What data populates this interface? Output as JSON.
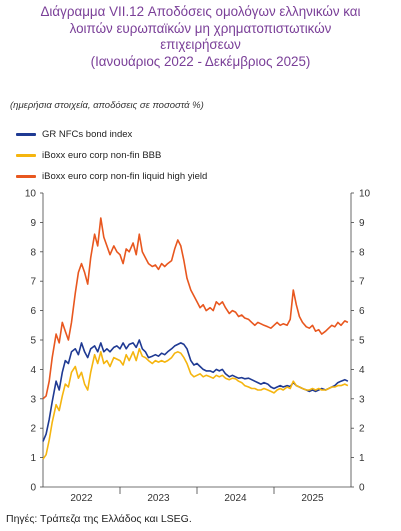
{
  "title": {
    "line1": "Διάγραμμα VII.12 Αποδόσεις ομολόγων ελληνικών και",
    "line2": "λοιπών ευρωπαϊκών μη χρηματοπιστωτικών",
    "line3": "επιχειρήσεων",
    "line4": "(Ιανουάριος 2022 - Δεκέμβριος 2025)"
  },
  "note": "(ημερήσια στοιχεία, αποδόσεις σε ποσοστά %)",
  "source": "Πηγές: Τράπεζα της Ελλάδος και LSEG.",
  "colors": {
    "title": "#7a3f98",
    "gr_nfcs": "#1f3a93",
    "bbb": "#f5b50f",
    "high_yield": "#e8571f"
  },
  "chart_data": {
    "type": "line",
    "title": "Διάγραμμα VII.12 Αποδόσεις ομολόγων ελληνικών και λοιπών ευρωπαϊκών μη χρηματοπιστωτικών επιχειρήσεων (Ιανουάριος 2022 - Δεκέμβριος 2025)",
    "xlabel": "",
    "ylabel": "",
    "x_ticks": [
      "2022",
      "2023",
      "2024",
      "2025"
    ],
    "y_ticks": [
      0,
      1,
      2,
      3,
      4,
      5,
      6,
      7,
      8,
      9,
      10
    ],
    "ylim": [
      0,
      10
    ],
    "xlim": [
      2022.0,
      2026.0
    ],
    "right_axis_mirror": true,
    "grid": false,
    "legend_position": "top-left",
    "series": [
      {
        "name": "GR NFCs bond index",
        "color": "#1f3a93",
        "points": [
          [
            2022.0,
            1.55
          ],
          [
            2022.04,
            1.8
          ],
          [
            2022.08,
            2.3
          ],
          [
            2022.12,
            2.9
          ],
          [
            2022.17,
            3.6
          ],
          [
            2022.21,
            3.3
          ],
          [
            2022.25,
            3.9
          ],
          [
            2022.29,
            4.3
          ],
          [
            2022.33,
            4.2
          ],
          [
            2022.37,
            4.6
          ],
          [
            2022.42,
            4.7
          ],
          [
            2022.46,
            4.5
          ],
          [
            2022.5,
            4.9
          ],
          [
            2022.54,
            4.6
          ],
          [
            2022.58,
            4.4
          ],
          [
            2022.62,
            4.7
          ],
          [
            2022.67,
            4.8
          ],
          [
            2022.71,
            4.6
          ],
          [
            2022.75,
            4.9
          ],
          [
            2022.79,
            4.6
          ],
          [
            2022.83,
            4.7
          ],
          [
            2022.87,
            4.6
          ],
          [
            2022.92,
            4.75
          ],
          [
            2022.96,
            4.8
          ],
          [
            2023.0,
            4.7
          ],
          [
            2023.04,
            4.9
          ],
          [
            2023.08,
            4.7
          ],
          [
            2023.12,
            4.85
          ],
          [
            2023.17,
            4.9
          ],
          [
            2023.21,
            4.75
          ],
          [
            2023.25,
            5.0
          ],
          [
            2023.29,
            4.7
          ],
          [
            2023.33,
            4.6
          ],
          [
            2023.37,
            4.4
          ],
          [
            2023.42,
            4.45
          ],
          [
            2023.46,
            4.5
          ],
          [
            2023.5,
            4.45
          ],
          [
            2023.54,
            4.55
          ],
          [
            2023.58,
            4.5
          ],
          [
            2023.62,
            4.6
          ],
          [
            2023.67,
            4.7
          ],
          [
            2023.71,
            4.8
          ],
          [
            2023.75,
            4.85
          ],
          [
            2023.79,
            4.9
          ],
          [
            2023.83,
            4.85
          ],
          [
            2023.87,
            4.7
          ],
          [
            2023.92,
            4.3
          ],
          [
            2023.96,
            4.15
          ],
          [
            2024.0,
            4.2
          ],
          [
            2024.04,
            4.1
          ],
          [
            2024.08,
            4.0
          ],
          [
            2024.12,
            3.95
          ],
          [
            2024.17,
            3.95
          ],
          [
            2024.21,
            3.9
          ],
          [
            2024.25,
            4.0
          ],
          [
            2024.29,
            3.95
          ],
          [
            2024.33,
            4.0
          ],
          [
            2024.37,
            3.85
          ],
          [
            2024.42,
            3.75
          ],
          [
            2024.46,
            3.8
          ],
          [
            2024.5,
            3.75
          ],
          [
            2024.54,
            3.7
          ],
          [
            2024.58,
            3.72
          ],
          [
            2024.62,
            3.68
          ],
          [
            2024.67,
            3.7
          ],
          [
            2024.71,
            3.65
          ],
          [
            2024.75,
            3.6
          ],
          [
            2024.79,
            3.55
          ],
          [
            2024.83,
            3.5
          ],
          [
            2024.87,
            3.55
          ],
          [
            2024.92,
            3.5
          ],
          [
            2024.96,
            3.4
          ],
          [
            2025.0,
            3.35
          ],
          [
            2025.04,
            3.4
          ],
          [
            2025.08,
            3.45
          ],
          [
            2025.12,
            3.4
          ],
          [
            2025.17,
            3.45
          ],
          [
            2025.21,
            3.42
          ],
          [
            2025.25,
            3.55
          ],
          [
            2025.29,
            3.45
          ],
          [
            2025.33,
            3.4
          ],
          [
            2025.37,
            3.35
          ],
          [
            2025.42,
            3.3
          ],
          [
            2025.46,
            3.25
          ],
          [
            2025.5,
            3.3
          ],
          [
            2025.54,
            3.25
          ],
          [
            2025.58,
            3.3
          ],
          [
            2025.62,
            3.35
          ],
          [
            2025.67,
            3.3
          ],
          [
            2025.71,
            3.35
          ],
          [
            2025.75,
            3.4
          ],
          [
            2025.79,
            3.45
          ],
          [
            2025.83,
            3.55
          ],
          [
            2025.87,
            3.6
          ],
          [
            2025.92,
            3.65
          ],
          [
            2025.96,
            3.6
          ]
        ]
      },
      {
        "name": "iBoxx euro corp non-fin BBB",
        "color": "#f5b50f",
        "points": [
          [
            2022.0,
            0.95
          ],
          [
            2022.04,
            1.1
          ],
          [
            2022.08,
            1.6
          ],
          [
            2022.12,
            2.2
          ],
          [
            2022.17,
            2.8
          ],
          [
            2022.21,
            2.6
          ],
          [
            2022.25,
            3.1
          ],
          [
            2022.29,
            3.5
          ],
          [
            2022.33,
            3.4
          ],
          [
            2022.37,
            3.9
          ],
          [
            2022.42,
            4.1
          ],
          [
            2022.46,
            3.7
          ],
          [
            2022.5,
            3.9
          ],
          [
            2022.54,
            3.5
          ],
          [
            2022.58,
            3.3
          ],
          [
            2022.62,
            3.9
          ],
          [
            2022.67,
            4.5
          ],
          [
            2022.71,
            4.2
          ],
          [
            2022.75,
            4.6
          ],
          [
            2022.79,
            4.2
          ],
          [
            2022.83,
            4.3
          ],
          [
            2022.87,
            4.1
          ],
          [
            2022.92,
            4.4
          ],
          [
            2022.96,
            4.35
          ],
          [
            2023.0,
            4.3
          ],
          [
            2023.04,
            4.15
          ],
          [
            2023.08,
            4.5
          ],
          [
            2023.12,
            4.3
          ],
          [
            2023.17,
            4.6
          ],
          [
            2023.21,
            4.3
          ],
          [
            2023.25,
            4.7
          ],
          [
            2023.29,
            4.45
          ],
          [
            2023.33,
            4.4
          ],
          [
            2023.37,
            4.3
          ],
          [
            2023.42,
            4.2
          ],
          [
            2023.46,
            4.3
          ],
          [
            2023.5,
            4.25
          ],
          [
            2023.54,
            4.3
          ],
          [
            2023.58,
            4.25
          ],
          [
            2023.62,
            4.3
          ],
          [
            2023.67,
            4.4
          ],
          [
            2023.71,
            4.55
          ],
          [
            2023.75,
            4.6
          ],
          [
            2023.79,
            4.55
          ],
          [
            2023.83,
            4.4
          ],
          [
            2023.87,
            4.2
          ],
          [
            2023.92,
            3.85
          ],
          [
            2023.96,
            3.75
          ],
          [
            2024.0,
            3.8
          ],
          [
            2024.04,
            3.85
          ],
          [
            2024.08,
            3.75
          ],
          [
            2024.12,
            3.8
          ],
          [
            2024.17,
            3.75
          ],
          [
            2024.21,
            3.7
          ],
          [
            2024.25,
            3.8
          ],
          [
            2024.29,
            3.75
          ],
          [
            2024.33,
            3.8
          ],
          [
            2024.37,
            3.7
          ],
          [
            2024.42,
            3.65
          ],
          [
            2024.46,
            3.7
          ],
          [
            2024.5,
            3.68
          ],
          [
            2024.54,
            3.6
          ],
          [
            2024.58,
            3.55
          ],
          [
            2024.62,
            3.45
          ],
          [
            2024.67,
            3.4
          ],
          [
            2024.71,
            3.35
          ],
          [
            2024.75,
            3.35
          ],
          [
            2024.79,
            3.3
          ],
          [
            2024.83,
            3.3
          ],
          [
            2024.87,
            3.35
          ],
          [
            2024.92,
            3.3
          ],
          [
            2024.96,
            3.25
          ],
          [
            2025.0,
            3.2
          ],
          [
            2025.04,
            3.3
          ],
          [
            2025.08,
            3.35
          ],
          [
            2025.12,
            3.3
          ],
          [
            2025.17,
            3.4
          ],
          [
            2025.21,
            3.35
          ],
          [
            2025.25,
            3.6
          ],
          [
            2025.29,
            3.45
          ],
          [
            2025.33,
            3.4
          ],
          [
            2025.37,
            3.35
          ],
          [
            2025.42,
            3.3
          ],
          [
            2025.46,
            3.3
          ],
          [
            2025.5,
            3.35
          ],
          [
            2025.54,
            3.3
          ],
          [
            2025.58,
            3.35
          ],
          [
            2025.62,
            3.3
          ],
          [
            2025.67,
            3.3
          ],
          [
            2025.71,
            3.35
          ],
          [
            2025.75,
            3.4
          ],
          [
            2025.79,
            3.4
          ],
          [
            2025.83,
            3.45
          ],
          [
            2025.87,
            3.45
          ],
          [
            2025.92,
            3.5
          ],
          [
            2025.96,
            3.45
          ]
        ]
      },
      {
        "name": "iBoxx euro corp non-fin liquid high yield",
        "color": "#e8571f",
        "points": [
          [
            2022.0,
            3.0
          ],
          [
            2022.04,
            3.1
          ],
          [
            2022.08,
            3.6
          ],
          [
            2022.12,
            4.4
          ],
          [
            2022.17,
            5.2
          ],
          [
            2022.21,
            4.9
          ],
          [
            2022.25,
            5.6
          ],
          [
            2022.29,
            5.3
          ],
          [
            2022.33,
            5.0
          ],
          [
            2022.37,
            5.6
          ],
          [
            2022.42,
            6.6
          ],
          [
            2022.46,
            7.3
          ],
          [
            2022.5,
            7.6
          ],
          [
            2022.54,
            7.3
          ],
          [
            2022.58,
            6.9
          ],
          [
            2022.62,
            7.8
          ],
          [
            2022.67,
            8.6
          ],
          [
            2022.71,
            8.2
          ],
          [
            2022.75,
            9.15
          ],
          [
            2022.79,
            8.5
          ],
          [
            2022.83,
            8.2
          ],
          [
            2022.87,
            7.9
          ],
          [
            2022.92,
            8.2
          ],
          [
            2022.96,
            8.0
          ],
          [
            2023.0,
            7.9
          ],
          [
            2023.04,
            7.6
          ],
          [
            2023.08,
            8.1
          ],
          [
            2023.12,
            8.0
          ],
          [
            2023.17,
            8.3
          ],
          [
            2023.21,
            7.9
          ],
          [
            2023.25,
            8.6
          ],
          [
            2023.29,
            8.0
          ],
          [
            2023.33,
            7.8
          ],
          [
            2023.37,
            7.6
          ],
          [
            2023.42,
            7.5
          ],
          [
            2023.46,
            7.55
          ],
          [
            2023.5,
            7.4
          ],
          [
            2023.54,
            7.6
          ],
          [
            2023.58,
            7.5
          ],
          [
            2023.62,
            7.6
          ],
          [
            2023.67,
            7.7
          ],
          [
            2023.71,
            8.1
          ],
          [
            2023.75,
            8.4
          ],
          [
            2023.79,
            8.2
          ],
          [
            2023.83,
            7.7
          ],
          [
            2023.87,
            7.1
          ],
          [
            2023.92,
            6.7
          ],
          [
            2023.96,
            6.5
          ],
          [
            2024.0,
            6.3
          ],
          [
            2024.04,
            6.1
          ],
          [
            2024.08,
            6.2
          ],
          [
            2024.12,
            6.0
          ],
          [
            2024.17,
            6.1
          ],
          [
            2024.21,
            6.0
          ],
          [
            2024.25,
            6.3
          ],
          [
            2024.29,
            6.2
          ],
          [
            2024.33,
            6.3
          ],
          [
            2024.37,
            6.1
          ],
          [
            2024.42,
            5.9
          ],
          [
            2024.46,
            6.0
          ],
          [
            2024.5,
            5.95
          ],
          [
            2024.54,
            5.8
          ],
          [
            2024.58,
            5.85
          ],
          [
            2024.62,
            5.75
          ],
          [
            2024.67,
            5.7
          ],
          [
            2024.71,
            5.6
          ],
          [
            2024.75,
            5.5
          ],
          [
            2024.79,
            5.6
          ],
          [
            2024.83,
            5.55
          ],
          [
            2024.87,
            5.5
          ],
          [
            2024.92,
            5.45
          ],
          [
            2024.96,
            5.4
          ],
          [
            2025.0,
            5.5
          ],
          [
            2025.04,
            5.6
          ],
          [
            2025.08,
            5.5
          ],
          [
            2025.12,
            5.55
          ],
          [
            2025.17,
            5.5
          ],
          [
            2025.21,
            5.7
          ],
          [
            2025.25,
            6.7
          ],
          [
            2025.29,
            6.2
          ],
          [
            2025.33,
            5.8
          ],
          [
            2025.37,
            5.6
          ],
          [
            2025.42,
            5.45
          ],
          [
            2025.46,
            5.4
          ],
          [
            2025.5,
            5.5
          ],
          [
            2025.54,
            5.3
          ],
          [
            2025.58,
            5.35
          ],
          [
            2025.62,
            5.2
          ],
          [
            2025.67,
            5.3
          ],
          [
            2025.71,
            5.4
          ],
          [
            2025.75,
            5.5
          ],
          [
            2025.79,
            5.45
          ],
          [
            2025.83,
            5.6
          ],
          [
            2025.87,
            5.5
          ],
          [
            2025.92,
            5.65
          ],
          [
            2025.96,
            5.6
          ]
        ]
      }
    ]
  }
}
